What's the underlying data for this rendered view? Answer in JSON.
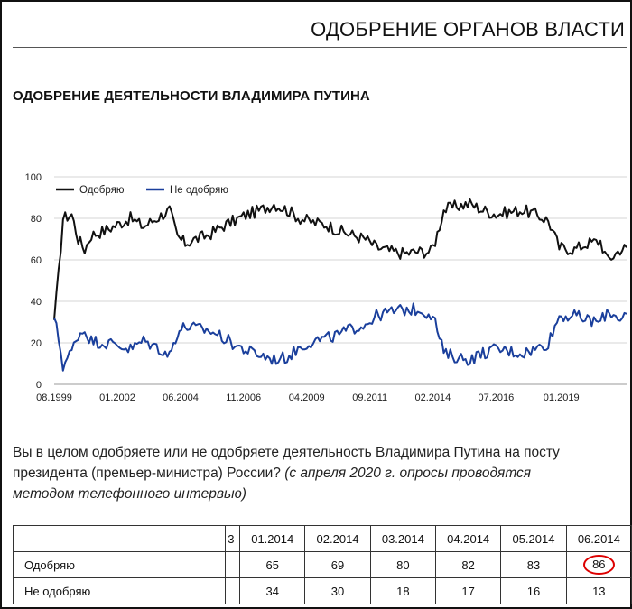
{
  "header": {
    "title": "ОДОБРЕНИЕ ОРГАНОВ ВЛАСТИ"
  },
  "section": {
    "title": "ОДОБРЕНИЕ ДЕЯТЕЛЬНОСТИ ВЛАДИМИРА ПУТИНА"
  },
  "question": {
    "line1": "Вы в целом одобряете или не одобряете деятельность Владимира Путина на посту",
    "line2_main": "президента (премьер-министра) России? ",
    "line2_note": "(с апреля 2020 г. опросы проводятся",
    "line3_note": "методом телефонного интервью)"
  },
  "chart_data": {
    "type": "line",
    "title": "",
    "xlabel": "",
    "ylabel": "",
    "ylim": [
      0,
      100
    ],
    "yticks": [
      0,
      20,
      40,
      60,
      80,
      100
    ],
    "xlim": [
      1999.58,
      2021.5
    ],
    "xtick_labels": [
      "08.1999",
      "01.2002",
      "06.2004",
      "11.2006",
      "04.2009",
      "09.2011",
      "02.2014",
      "07.2016",
      "01.2019"
    ],
    "xtick_years": [
      1999.58,
      2002.0,
      2004.42,
      2006.83,
      2009.25,
      2011.67,
      2014.08,
      2016.5,
      2019.0
    ],
    "grid": true,
    "legend": "top-left",
    "x": [
      1999.58,
      1999.75,
      1999.92,
      2000.25,
      2000.5,
      2000.75,
      2001.0,
      2001.5,
      2002.0,
      2002.5,
      2003.0,
      2003.5,
      2004.0,
      2004.3,
      2004.6,
      2005.0,
      2005.5,
      2006.0,
      2006.5,
      2007.0,
      2007.5,
      2008.0,
      2008.5,
      2009.0,
      2009.5,
      2010.0,
      2010.5,
      2011.0,
      2011.5,
      2011.92,
      2012.5,
      2013.0,
      2013.5,
      2014.0,
      2014.17,
      2014.5,
      2015.0,
      2015.5,
      2016.0,
      2016.5,
      2017.0,
      2017.5,
      2018.0,
      2018.5,
      2018.92,
      2019.5,
      2020.0,
      2020.5,
      2020.75,
      2021.0,
      2021.25,
      2021.5
    ],
    "series": [
      {
        "name": "Одобряю",
        "color": "#111111",
        "values": [
          31,
          53,
          80,
          82,
          70,
          65,
          72,
          74,
          77,
          80,
          76,
          80,
          84,
          71,
          68,
          70,
          72,
          76,
          79,
          82,
          84,
          87,
          84,
          80,
          78,
          77,
          74,
          72,
          70,
          66,
          64,
          63,
          64,
          64,
          69,
          84,
          86,
          87,
          84,
          82,
          83,
          84,
          82,
          79,
          66,
          65,
          68,
          69,
          60,
          62,
          65,
          66
        ]
      },
      {
        "name": "Не одобряю",
        "color": "#1a3f9c",
        "values": [
          32,
          22,
          9,
          16,
          24,
          26,
          21,
          20,
          19,
          17,
          21,
          18,
          14,
          25,
          28,
          27,
          26,
          23,
          19,
          16,
          14,
          12,
          13,
          18,
          21,
          22,
          24,
          27,
          29,
          33,
          35,
          36,
          36,
          34,
          30,
          15,
          13,
          12,
          15,
          17,
          16,
          15,
          17,
          20,
          33,
          33,
          31,
          30,
          35,
          34,
          32,
          34
        ]
      }
    ]
  },
  "table": {
    "header": {
      "label": "",
      "narrow": "3",
      "months": [
        "01.2014",
        "02.2014",
        "03.2014",
        "04.2014",
        "05.2014",
        "06.2014"
      ]
    },
    "rows": [
      {
        "label": "Одобряю",
        "narrow": "",
        "values": [
          "65",
          "69",
          "80",
          "82",
          "83",
          "86"
        ]
      },
      {
        "label": "Не одобряю",
        "narrow": "",
        "values": [
          "34",
          "30",
          "18",
          "17",
          "16",
          "13"
        ]
      }
    ],
    "highlight_color": "#dd0000"
  }
}
